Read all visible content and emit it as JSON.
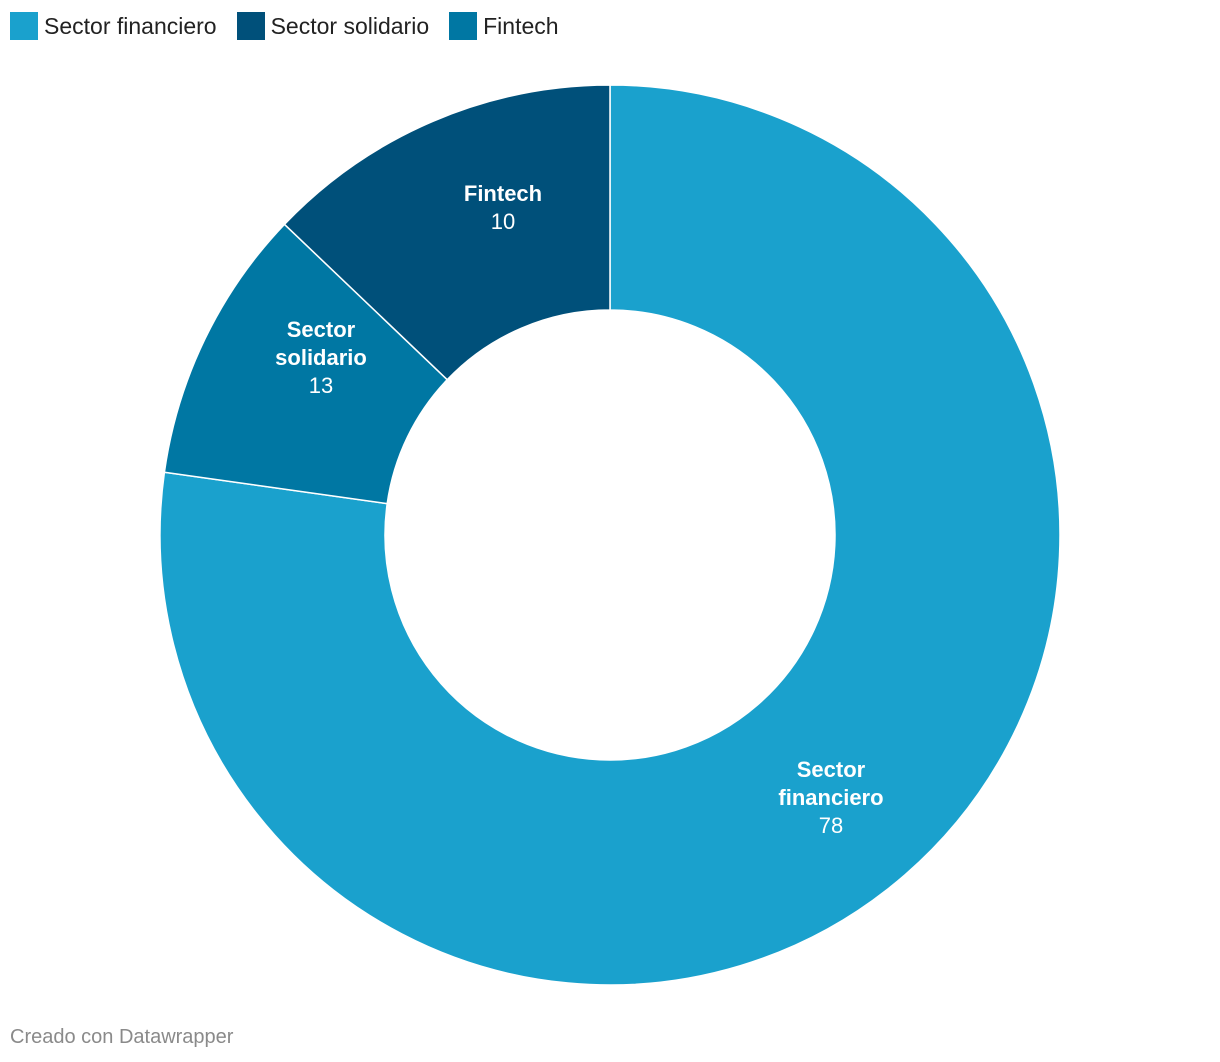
{
  "chart_data": {
    "type": "pie",
    "variant": "donut",
    "categories": [
      "Sector financiero",
      "Sector solidario",
      "Fintech"
    ],
    "values": [
      78,
      13,
      10
    ],
    "colors": [
      "#1aa1cd",
      "#00507a",
      "#0077a3"
    ],
    "slice_labels": [
      {
        "name_lines": [
          "Sector",
          "financiero"
        ],
        "value": "78"
      },
      {
        "name_lines": [
          "Sector",
          "solidario"
        ],
        "value": "13"
      },
      {
        "name_lines": [
          "Fintech"
        ],
        "value": "10"
      }
    ],
    "legend": {
      "placement": "top-left",
      "items": [
        {
          "label": "Sector financiero",
          "color": "#1aa1cd"
        },
        {
          "label": "Sector solidario",
          "color": "#00507a"
        },
        {
          "label": "Fintech",
          "color": "#0077a3"
        }
      ]
    }
  },
  "footer": {
    "credit": "Creado con Datawrapper"
  }
}
